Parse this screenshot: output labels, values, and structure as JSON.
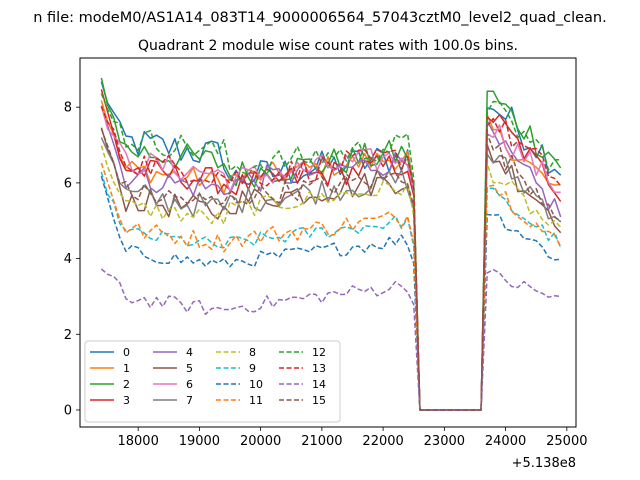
{
  "chart_data": {
    "type": "line",
    "suptitle": "n file: modeM0/AS1A14_083T14_9000006564_57043cztM0_level2_quad_clean.",
    "title": "Quadrant 2 module wise count rates with 100.0s bins.",
    "xlabel": "",
    "ylabel": "",
    "offset_label": "+5.138e8",
    "xlim": [
      17050,
      25150
    ],
    "ylim": [
      -0.45,
      9.3
    ],
    "x_ticks": [
      18000,
      19000,
      20000,
      21000,
      22000,
      23000,
      24000,
      25000
    ],
    "y_ticks": [
      0,
      2,
      4,
      6,
      8
    ],
    "x_start": 17400,
    "x_step": 100,
    "gap": [
      22500,
      23500
    ],
    "legend_position": "lower-left",
    "series": [
      {
        "name": "0",
        "color": "#1f77b4",
        "dashed": false,
        "level1": 7.1,
        "level2": 6.5,
        "start": 8.6,
        "after": 8.2,
        "end": 6.4,
        "amp": 0.45
      },
      {
        "name": "1",
        "color": "#ff7f0e",
        "dashed": false,
        "level1": 6.4,
        "level2": 6.5,
        "start": 8.2,
        "after": 7.5,
        "end": 5.7,
        "amp": 0.3
      },
      {
        "name": "2",
        "color": "#2ca02c",
        "dashed": false,
        "level1": 6.9,
        "level2": 6.6,
        "start": 8.7,
        "after": 8.4,
        "end": 6.5,
        "amp": 0.4
      },
      {
        "name": "3",
        "color": "#d62728",
        "dashed": false,
        "level1": 6.4,
        "level2": 6.3,
        "start": 8.4,
        "after": 7.9,
        "end": 5.8,
        "amp": 0.35
      },
      {
        "name": "4",
        "color": "#9467bd",
        "dashed": false,
        "level1": 6.2,
        "level2": 6.4,
        "start": 8.1,
        "after": 7.3,
        "end": 5.2,
        "amp": 0.35
      },
      {
        "name": "5",
        "color": "#8c564b",
        "dashed": false,
        "level1": 5.6,
        "level2": 5.9,
        "start": 7.4,
        "after": 6.9,
        "end": 5.0,
        "amp": 0.35
      },
      {
        "name": "6",
        "color": "#e377c2",
        "dashed": false,
        "level1": 6.6,
        "level2": 6.5,
        "start": 7.9,
        "after": 7.6,
        "end": 5.8,
        "amp": 0.35
      },
      {
        "name": "7",
        "color": "#7f7f7f",
        "dashed": false,
        "level1": 5.7,
        "level2": 5.9,
        "start": 7.3,
        "after": 6.8,
        "end": 5.1,
        "amp": 0.35
      },
      {
        "name": "8",
        "color": "#bcbd22",
        "dashed": true,
        "level1": 5.4,
        "level2": 5.7,
        "start": 6.9,
        "after": 6.4,
        "end": 4.6,
        "amp": 0.25
      },
      {
        "name": "9",
        "color": "#17becf",
        "dashed": true,
        "level1": 4.7,
        "level2": 4.8,
        "start": 6.2,
        "after": 5.8,
        "end": 4.4,
        "amp": 0.2
      },
      {
        "name": "10",
        "color": "#1f77b4",
        "dashed": true,
        "level1": 4.2,
        "level2": 4.3,
        "start": 6.1,
        "after": 5.3,
        "end": 3.95,
        "amp": 0.2
      },
      {
        "name": "11",
        "color": "#ff7f0e",
        "dashed": true,
        "level1": 4.8,
        "level2": 4.9,
        "start": 6.5,
        "after": 6.1,
        "end": 4.3,
        "amp": 0.25
      },
      {
        "name": "12",
        "color": "#2ca02c",
        "dashed": true,
        "level1": 7.2,
        "level2": 6.8,
        "start": 8.3,
        "after": 8.1,
        "end": 6.4,
        "amp": 0.35
      },
      {
        "name": "13",
        "color": "#d62728",
        "dashed": true,
        "level1": 6.6,
        "level2": 6.5,
        "start": 8.0,
        "after": 7.8,
        "end": 6.0,
        "amp": 0.35
      },
      {
        "name": "14",
        "color": "#9467bd",
        "dashed": true,
        "level1": 3.0,
        "level2": 3.1,
        "start": 3.7,
        "after": 3.6,
        "end": 2.9,
        "amp": 0.2
      },
      {
        "name": "15",
        "color": "#8c564b",
        "dashed": true,
        "level1": 5.8,
        "level2": 6.0,
        "start": 7.4,
        "after": 7.1,
        "end": 5.2,
        "amp": 0.3
      }
    ]
  }
}
